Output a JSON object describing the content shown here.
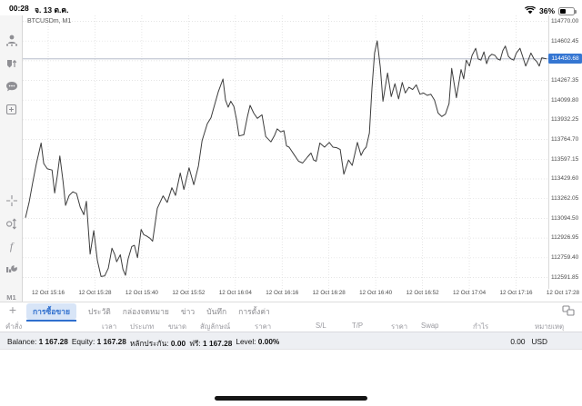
{
  "status_bar": {
    "time": "00:28",
    "date": "จ. 13 ต.ค.",
    "battery_percent": "36%"
  },
  "sidebar": {
    "icons": [
      "account-icon",
      "price-alert-icon",
      "chat-icon",
      "new-order-icon",
      "crosshair-icon",
      "chart-type-icon",
      "indicators-icon",
      "objects-icon"
    ],
    "timeframe": "M1"
  },
  "chart_data": {
    "type": "line",
    "title": "BTCUSDm, M1",
    "symbol": "BTCUSDm",
    "timeframe": "M1",
    "current_price": "114450.68",
    "accent_color": "#3576d2",
    "line_color": "#3c3c3c",
    "grid": "dotted",
    "y_range": [
      112495,
      114820
    ],
    "y_ticks": [
      "114770.00",
      "114602.45",
      "114434.90",
      "114267.35",
      "114099.80",
      "113932.25",
      "113764.70",
      "113597.15",
      "113429.60",
      "113262.05",
      "113094.50",
      "112926.95",
      "112759.40",
      "112591.85"
    ],
    "x_ticks": [
      "12 Oct 15:16",
      "12 Oct 15:28",
      "12 Oct 15:40",
      "12 Oct 15:52",
      "12 Oct 16:04",
      "12 Oct 16:16",
      "12 Oct 16:28",
      "12 Oct 16:40",
      "12 Oct 16:52",
      "12 Oct 17:04",
      "12 Oct 17:16",
      "12 Oct 17:28"
    ],
    "series": [
      {
        "name": "BTCUSDm bid",
        "points": [
          [
            0,
            113100
          ],
          [
            0.7,
            113230
          ],
          [
            1.4,
            113400
          ],
          [
            2.1,
            113560
          ],
          [
            3.0,
            113735
          ],
          [
            3.5,
            113560
          ],
          [
            4.2,
            113515
          ],
          [
            5.1,
            113505
          ],
          [
            5.6,
            113310
          ],
          [
            6.1,
            113455
          ],
          [
            6.6,
            113625
          ],
          [
            7.2,
            113410
          ],
          [
            7.7,
            113205
          ],
          [
            8.4,
            113290
          ],
          [
            9.1,
            113320
          ],
          [
            9.8,
            113305
          ],
          [
            10.5,
            113190
          ],
          [
            11.2,
            113125
          ],
          [
            11.7,
            113240
          ],
          [
            12.4,
            112790
          ],
          [
            13.1,
            112990
          ],
          [
            13.8,
            112735
          ],
          [
            14.5,
            112600
          ],
          [
            15.2,
            112605
          ],
          [
            15.9,
            112670
          ],
          [
            16.6,
            112840
          ],
          [
            17.1,
            112790
          ],
          [
            17.5,
            112725
          ],
          [
            18.2,
            112785
          ],
          [
            18.7,
            112660
          ],
          [
            19.2,
            112610
          ],
          [
            19.7,
            112750
          ],
          [
            20.4,
            112855
          ],
          [
            20.9,
            112865
          ],
          [
            21.5,
            112760
          ],
          [
            22.2,
            113000
          ],
          [
            22.7,
            112955
          ],
          [
            23.2,
            112945
          ],
          [
            23.9,
            112925
          ],
          [
            24.4,
            112900
          ],
          [
            25.3,
            113180
          ],
          [
            26.4,
            113285
          ],
          [
            27.2,
            113230
          ],
          [
            28.1,
            113355
          ],
          [
            28.8,
            113290
          ],
          [
            29.7,
            113480
          ],
          [
            30.4,
            113340
          ],
          [
            31.4,
            113525
          ],
          [
            32.3,
            113380
          ],
          [
            33.2,
            113540
          ],
          [
            33.9,
            113755
          ],
          [
            34.9,
            113900
          ],
          [
            35.6,
            113950
          ],
          [
            36.3,
            114060
          ],
          [
            37.0,
            114170
          ],
          [
            37.9,
            114279
          ],
          [
            38.4,
            114100
          ],
          [
            38.9,
            114040
          ],
          [
            39.4,
            114090
          ],
          [
            40.0,
            114045
          ],
          [
            40.5,
            113935
          ],
          [
            41.0,
            113795
          ],
          [
            41.9,
            113805
          ],
          [
            42.6,
            113960
          ],
          [
            43.1,
            114055
          ],
          [
            43.8,
            113990
          ],
          [
            44.5,
            113945
          ],
          [
            45.4,
            113975
          ],
          [
            46.1,
            113790
          ],
          [
            47.1,
            113745
          ],
          [
            47.8,
            113800
          ],
          [
            48.3,
            113855
          ],
          [
            49.0,
            113830
          ],
          [
            49.6,
            113840
          ],
          [
            50.1,
            113710
          ],
          [
            50.6,
            113700
          ],
          [
            51.5,
            113640
          ],
          [
            52.4,
            113580
          ],
          [
            53.2,
            113565
          ],
          [
            54.1,
            113615
          ],
          [
            54.8,
            113650
          ],
          [
            55.3,
            113590
          ],
          [
            55.8,
            113580
          ],
          [
            56.5,
            113735
          ],
          [
            57.4,
            113700
          ],
          [
            58.3,
            113740
          ],
          [
            59.0,
            113700
          ],
          [
            59.7,
            113695
          ],
          [
            60.4,
            113680
          ],
          [
            61.1,
            113470
          ],
          [
            62.0,
            113590
          ],
          [
            62.7,
            113545
          ],
          [
            63.4,
            113680
          ],
          [
            63.7,
            113740
          ],
          [
            64.4,
            113630
          ],
          [
            64.9,
            113675
          ],
          [
            65.4,
            113700
          ],
          [
            66.0,
            113820
          ],
          [
            66.5,
            114200
          ],
          [
            67.0,
            114500
          ],
          [
            67.5,
            114604
          ],
          [
            68.1,
            114380
          ],
          [
            68.6,
            114090
          ],
          [
            69.5,
            114330
          ],
          [
            70.2,
            114130
          ],
          [
            70.9,
            114240
          ],
          [
            71.6,
            114110
          ],
          [
            72.3,
            114250
          ],
          [
            72.9,
            114160
          ],
          [
            73.6,
            114210
          ],
          [
            74.3,
            114190
          ],
          [
            75.0,
            114230
          ],
          [
            75.7,
            114150
          ],
          [
            76.4,
            114160
          ],
          [
            77.1,
            114140
          ],
          [
            77.8,
            114150
          ],
          [
            78.5,
            114100
          ],
          [
            79.2,
            113990
          ],
          [
            79.9,
            113960
          ],
          [
            80.6,
            113980
          ],
          [
            81.3,
            114070
          ],
          [
            81.8,
            114370
          ],
          [
            82.7,
            114120
          ],
          [
            83.6,
            114360
          ],
          [
            84.1,
            114280
          ],
          [
            84.6,
            114440
          ],
          [
            85.2,
            114390
          ],
          [
            85.7,
            114480
          ],
          [
            86.4,
            114540
          ],
          [
            86.9,
            114450
          ],
          [
            87.4,
            114440
          ],
          [
            88.0,
            114510
          ],
          [
            88.5,
            114410
          ],
          [
            89.0,
            114470
          ],
          [
            89.5,
            114490
          ],
          [
            90.1,
            114480
          ],
          [
            90.6,
            114450
          ],
          [
            91.1,
            114440
          ],
          [
            91.6,
            114520
          ],
          [
            92.1,
            114560
          ],
          [
            92.7,
            114470
          ],
          [
            93.2,
            114450
          ],
          [
            93.7,
            114440
          ],
          [
            94.2,
            114500
          ],
          [
            94.9,
            114540
          ],
          [
            95.5,
            114460
          ],
          [
            96.0,
            114390
          ],
          [
            96.5,
            114440
          ],
          [
            97.0,
            114500
          ],
          [
            97.6,
            114450
          ],
          [
            98.1,
            114430
          ],
          [
            98.6,
            114390
          ],
          [
            99.1,
            114460
          ],
          [
            100,
            114451
          ]
        ]
      }
    ]
  },
  "panel": {
    "plus_label": "+",
    "tabs": [
      {
        "name": "trade",
        "label": "การซื้อขาย",
        "selected": true
      },
      {
        "name": "history",
        "label": "ประวัติ",
        "selected": false
      },
      {
        "name": "mailbox",
        "label": "กล่องจดหมาย",
        "selected": false
      },
      {
        "name": "news",
        "label": "ข่าว",
        "selected": false
      },
      {
        "name": "journal",
        "label": "บันทึก",
        "selected": false
      },
      {
        "name": "settings",
        "label": "การตั้งค่า",
        "selected": false
      }
    ],
    "columns": [
      "คำสั่ง",
      "เวลา",
      "ประเภท",
      "ขนาด",
      "สัญลักษณ์",
      "ราคา",
      "S/L",
      "T/P",
      "ราคา",
      "Swap",
      "กำไร",
      "หมายเหตุ"
    ]
  },
  "balance_bar": {
    "segments": [
      {
        "label": "Balance:",
        "value": "1 167.28"
      },
      {
        "label": "Equity:",
        "value": "1 167.28"
      },
      {
        "label": "หลักประกัน:",
        "value": "0.00"
      },
      {
        "label": "ฟรี:",
        "value": "1 167.28"
      },
      {
        "label": "Level:",
        "value": "0.00%"
      }
    ],
    "profit": "0.00",
    "currency": "USD"
  }
}
